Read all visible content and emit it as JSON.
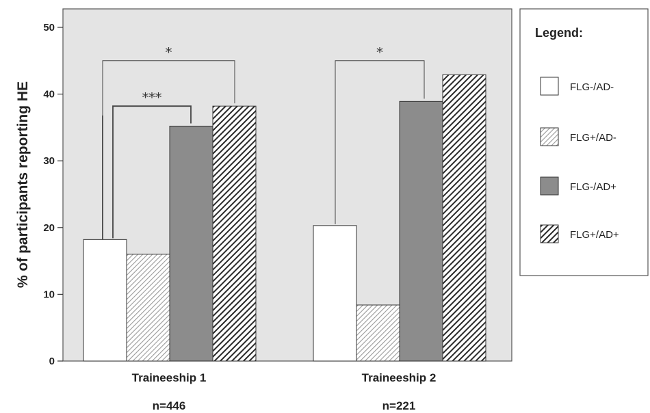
{
  "chart_data": {
    "type": "bar",
    "ylabel": "% of participants reporting HE",
    "ylim": [
      0,
      52
    ],
    "yticks": [
      0,
      10,
      20,
      30,
      40,
      50
    ],
    "categories": [
      "Traineeship 1",
      "Traineeship 2"
    ],
    "sample_sizes": [
      "n=446",
      "n=221"
    ],
    "series": [
      {
        "name": "FLG-/AD-",
        "values": [
          18.2,
          20.3
        ],
        "fill": "#ffffff",
        "pattern": "none"
      },
      {
        "name": "FLG+/AD-",
        "values": [
          16.0,
          8.4
        ],
        "fill": "#bdbdbd",
        "pattern": "light-hatch"
      },
      {
        "name": "FLG-/AD+",
        "values": [
          35.2,
          38.9
        ],
        "fill": "#8c8c8c",
        "pattern": "none"
      },
      {
        "name": "FLG+/AD+",
        "values": [
          38.2,
          42.9
        ],
        "fill": "#3a3a3a",
        "pattern": "dark-hatch"
      }
    ],
    "significance": [
      {
        "category": 0,
        "from": 0,
        "to": 3,
        "label": "*"
      },
      {
        "category": 0,
        "from": 0,
        "to": 2,
        "label": "***"
      },
      {
        "category": 1,
        "from": 0,
        "to": 2,
        "label": "*"
      }
    ],
    "legend": {
      "title": "Legend:",
      "position": "right"
    },
    "grid": false,
    "plot_background": "#e4e4e4"
  }
}
